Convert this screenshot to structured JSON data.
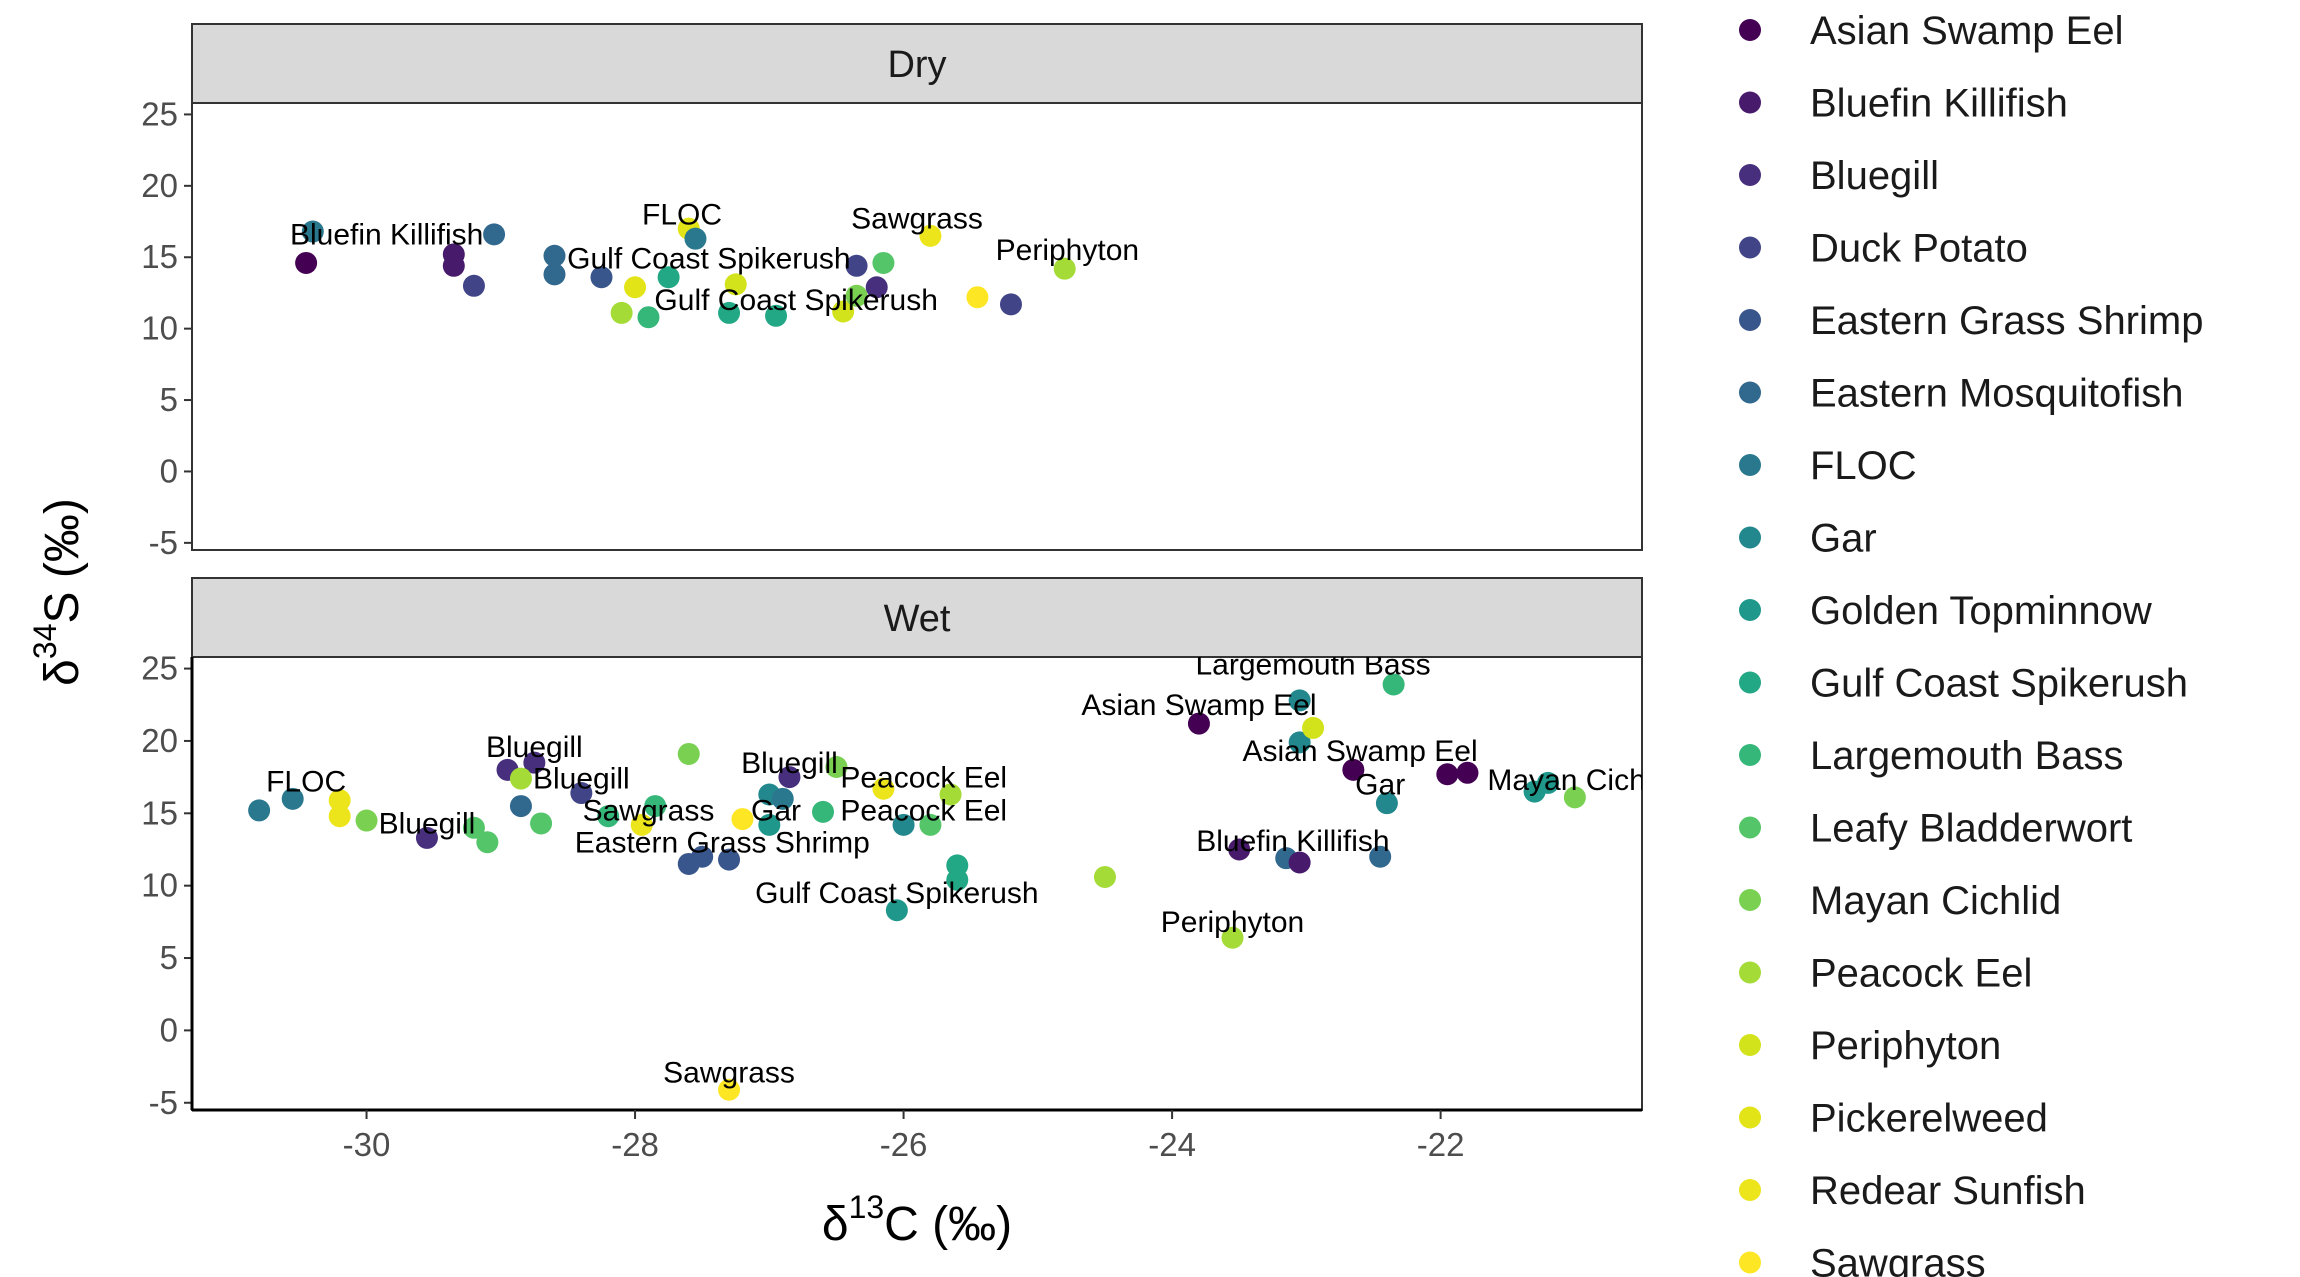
{
  "chart_data": {
    "type": "scatter",
    "xlabel_parts": [
      "δ",
      "13",
      "C (‰)"
    ],
    "ylabel_parts": [
      "δ",
      "34",
      "S (‰)"
    ],
    "xlim": [
      -31.3,
      -20.5
    ],
    "ylim": [
      -5.5,
      25.8
    ],
    "xticks": [
      -30,
      -28,
      -26,
      -24,
      -22
    ],
    "yticks": [
      -5,
      0,
      5,
      10,
      15,
      20,
      25
    ],
    "xtick_labels": [
      "-30",
      "-28",
      "-26",
      "-24",
      "-22"
    ],
    "ytick_labels": [
      "-5",
      "0",
      "5",
      "10",
      "15",
      "20",
      "25"
    ],
    "legend_position": "right",
    "grid": false,
    "species": [
      {
        "name": "Asian Swamp Eel",
        "color": "#440154"
      },
      {
        "name": "Bluefin Killifish",
        "color": "#481A6C"
      },
      {
        "name": "Bluegill",
        "color": "#472F7D"
      },
      {
        "name": "Duck Potato",
        "color": "#414487"
      },
      {
        "name": "Eastern Grass Shrimp",
        "color": "#39568C"
      },
      {
        "name": "Eastern Mosquitofish",
        "color": "#31688E"
      },
      {
        "name": "FLOC",
        "color": "#2A788E"
      },
      {
        "name": "Gar",
        "color": "#23888E"
      },
      {
        "name": "Golden Topminnow",
        "color": "#1F988B"
      },
      {
        "name": "Gulf Coast Spikerush",
        "color": "#22A884"
      },
      {
        "name": "Largemouth Bass",
        "color": "#35B779"
      },
      {
        "name": "Leafy Bladderwort",
        "color": "#54C568"
      },
      {
        "name": "Mayan Cichlid",
        "color": "#7AD151"
      },
      {
        "name": "Peacock Eel",
        "color": "#A5DB36"
      },
      {
        "name": "Periphyton",
        "color": "#D2E21B"
      },
      {
        "name": "Pickerelweed",
        "color": "#E3E418"
      },
      {
        "name": "Redear Sunfish",
        "color": "#EDE51B"
      },
      {
        "name": "Sawgrass",
        "color": "#FDE725"
      }
    ],
    "panels": [
      {
        "name": "Dry",
        "points": [
          {
            "s": 0,
            "x": -30.45,
            "y": 14.6
          },
          {
            "s": 6,
            "x": -30.4,
            "y": 16.8
          },
          {
            "s": 1,
            "x": -29.35,
            "y": 15.2
          },
          {
            "s": 1,
            "x": -29.35,
            "y": 14.4
          },
          {
            "s": 3,
            "x": -29.2,
            "y": 13.0
          },
          {
            "s": 5,
            "x": -29.05,
            "y": 16.6
          },
          {
            "s": 5,
            "x": -28.6,
            "y": 15.1
          },
          {
            "s": 5,
            "x": -28.6,
            "y": 13.8
          },
          {
            "s": 4,
            "x": -28.25,
            "y": 13.6
          },
          {
            "s": 15,
            "x": -28.0,
            "y": 12.9
          },
          {
            "s": 9,
            "x": -27.75,
            "y": 13.6
          },
          {
            "s": 13,
            "x": -28.1,
            "y": 11.1
          },
          {
            "s": 10,
            "x": -27.9,
            "y": 10.8
          },
          {
            "s": 15,
            "x": -27.6,
            "y": 17.0
          },
          {
            "s": 6,
            "x": -27.55,
            "y": 16.3
          },
          {
            "s": 14,
            "x": -27.25,
            "y": 13.1
          },
          {
            "s": 9,
            "x": -27.3,
            "y": 11.1
          },
          {
            "s": 9,
            "x": -26.95,
            "y": 10.9
          },
          {
            "s": 14,
            "x": -26.45,
            "y": 11.2
          },
          {
            "s": 12,
            "x": -26.35,
            "y": 12.3
          },
          {
            "s": 3,
            "x": -26.35,
            "y": 14.4
          },
          {
            "s": 11,
            "x": -26.15,
            "y": 14.6
          },
          {
            "s": 2,
            "x": -26.2,
            "y": 12.9
          },
          {
            "s": 16,
            "x": -25.8,
            "y": 16.5
          },
          {
            "s": 17,
            "x": -25.45,
            "y": 12.2
          },
          {
            "s": 3,
            "x": -25.2,
            "y": 11.7
          },
          {
            "s": 13,
            "x": -24.8,
            "y": 14.2
          }
        ],
        "labels": [
          {
            "text": "Bluefin Killifish",
            "x": -29.85,
            "y": 15.9
          },
          {
            "text": "Gulf Coast Spikerush",
            "x": -27.45,
            "y": 14.2
          },
          {
            "text": "FLOC",
            "x": -27.65,
            "y": 17.3
          },
          {
            "text": "Sawgrass",
            "x": -25.9,
            "y": 17.0
          },
          {
            "text": "Periphyton",
            "x": -24.78,
            "y": 14.8
          },
          {
            "text": "Gulf Coast Spikerush",
            "x": -26.8,
            "y": 11.3
          }
        ]
      },
      {
        "name": "Wet",
        "points": [
          {
            "s": 6,
            "x": -30.8,
            "y": 15.2
          },
          {
            "s": 6,
            "x": -30.55,
            "y": 16.0
          },
          {
            "s": 16,
            "x": -30.2,
            "y": 15.9
          },
          {
            "s": 16,
            "x": -30.2,
            "y": 14.8
          },
          {
            "s": 12,
            "x": -30.0,
            "y": 14.5
          },
          {
            "s": 2,
            "x": -29.55,
            "y": 13.3
          },
          {
            "s": 11,
            "x": -29.2,
            "y": 14.0
          },
          {
            "s": 11,
            "x": -29.1,
            "y": 13.0
          },
          {
            "s": 2,
            "x": -28.95,
            "y": 18.0
          },
          {
            "s": 2,
            "x": -28.75,
            "y": 18.5
          },
          {
            "s": 13,
            "x": -28.85,
            "y": 17.4
          },
          {
            "s": 5,
            "x": -28.85,
            "y": 15.5
          },
          {
            "s": 11,
            "x": -28.7,
            "y": 14.3
          },
          {
            "s": 3,
            "x": -28.4,
            "y": 16.4
          },
          {
            "s": 10,
            "x": -28.2,
            "y": 14.8
          },
          {
            "s": 10,
            "x": -27.85,
            "y": 15.5
          },
          {
            "s": 16,
            "x": -27.95,
            "y": 14.2
          },
          {
            "s": 12,
            "x": -27.6,
            "y": 19.1
          },
          {
            "s": 4,
            "x": -27.6,
            "y": 11.5
          },
          {
            "s": 4,
            "x": -27.5,
            "y": 12.0
          },
          {
            "s": 4,
            "x": -27.3,
            "y": 11.8
          },
          {
            "s": 17,
            "x": -27.2,
            "y": 14.6
          },
          {
            "s": 8,
            "x": -27.0,
            "y": 14.2
          },
          {
            "s": 7,
            "x": -27.0,
            "y": 16.3
          },
          {
            "s": 6,
            "x": -26.9,
            "y": 16.0
          },
          {
            "s": 2,
            "x": -26.85,
            "y": 17.5
          },
          {
            "s": 10,
            "x": -26.6,
            "y": 15.1
          },
          {
            "s": 12,
            "x": -26.5,
            "y": 18.2
          },
          {
            "s": 16,
            "x": -26.15,
            "y": 16.7
          },
          {
            "s": 7,
            "x": -26.0,
            "y": 14.2
          },
          {
            "s": 11,
            "x": -25.8,
            "y": 14.2
          },
          {
            "s": 13,
            "x": -25.65,
            "y": 16.3
          },
          {
            "s": 9,
            "x": -25.6,
            "y": 11.4
          },
          {
            "s": 9,
            "x": -25.6,
            "y": 10.4
          },
          {
            "s": 8,
            "x": -26.05,
            "y": 8.3
          },
          {
            "s": 17,
            "x": -27.3,
            "y": -4.1
          },
          {
            "s": 13,
            "x": -24.5,
            "y": 10.6
          },
          {
            "s": 0,
            "x": -23.8,
            "y": 21.2
          },
          {
            "s": 1,
            "x": -23.5,
            "y": 12.5
          },
          {
            "s": 13,
            "x": -23.55,
            "y": 6.4
          },
          {
            "s": 5,
            "x": -23.15,
            "y": 11.9
          },
          {
            "s": 1,
            "x": -23.05,
            "y": 11.6
          },
          {
            "s": 7,
            "x": -23.05,
            "y": 22.8
          },
          {
            "s": 7,
            "x": -23.05,
            "y": 19.9
          },
          {
            "s": 14,
            "x": -22.95,
            "y": 20.9
          },
          {
            "s": 0,
            "x": -22.65,
            "y": 18.0
          },
          {
            "s": 10,
            "x": -22.35,
            "y": 23.9
          },
          {
            "s": 7,
            "x": -22.4,
            "y": 15.7
          },
          {
            "s": 5,
            "x": -22.45,
            "y": 12.0
          },
          {
            "s": 0,
            "x": -21.95,
            "y": 17.7
          },
          {
            "s": 0,
            "x": -21.8,
            "y": 17.8
          },
          {
            "s": 8,
            "x": -21.3,
            "y": 16.5
          },
          {
            "s": 8,
            "x": -21.2,
            "y": 17.1
          },
          {
            "s": 12,
            "x": -21.0,
            "y": 16.1
          }
        ],
        "labels": [
          {
            "text": "Largemouth Bass",
            "x": -22.95,
            "y": 24.6
          },
          {
            "text": "Asian Swamp Eel",
            "x": -23.8,
            "y": 21.8
          },
          {
            "text": "Asian Swamp Eel",
            "x": -22.6,
            "y": 18.6
          },
          {
            "text": "Gar",
            "x": -22.45,
            "y": 16.3
          },
          {
            "text": "Mayan Cichlid",
            "x": -20.95,
            "y": 16.6
          },
          {
            "text": "Bluegill",
            "x": -28.75,
            "y": 18.9
          },
          {
            "text": "FLOC",
            "x": -30.45,
            "y": 16.5
          },
          {
            "text": "Bluegill",
            "x": -28.4,
            "y": 16.7
          },
          {
            "text": "Bluegill",
            "x": -29.55,
            "y": 13.6
          },
          {
            "text": "Bluegill",
            "x": -26.85,
            "y": 17.8
          },
          {
            "text": "Peacock Eel",
            "x": -25.85,
            "y": 16.8
          },
          {
            "text": "Sawgrass",
            "x": -27.9,
            "y": 14.5
          },
          {
            "text": "Gar",
            "x": -26.95,
            "y": 14.5
          },
          {
            "text": "Peacock Eel",
            "x": -25.85,
            "y": 14.5
          },
          {
            "text": "Eastern Grass Shrimp",
            "x": -27.35,
            "y": 12.3
          },
          {
            "text": "Bluefin Killifish",
            "x": -23.1,
            "y": 12.4
          },
          {
            "text": "Gulf Coast Spikerush",
            "x": -26.05,
            "y": 8.8
          },
          {
            "text": "Periphyton",
            "x": -23.55,
            "y": 6.8
          },
          {
            "text": "Sawgrass",
            "x": -27.3,
            "y": -3.6
          }
        ]
      }
    ]
  }
}
